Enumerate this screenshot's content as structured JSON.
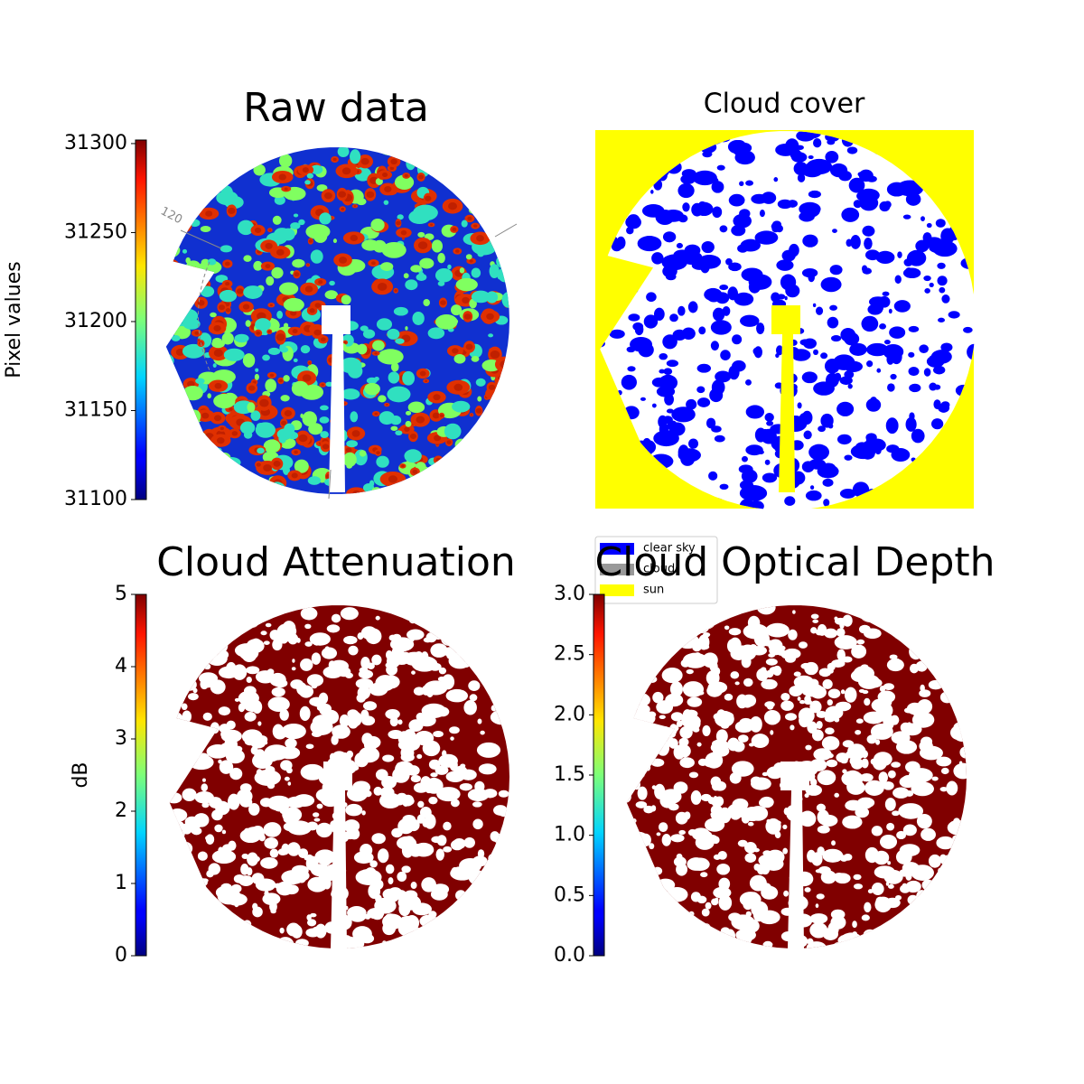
{
  "chart_data": [
    {
      "type": "image",
      "title": "Raw data",
      "colorbar_label": "Pixel values",
      "clim": [
        31100,
        31302
      ],
      "cticks": [
        31100,
        31150,
        31200,
        31250,
        31300
      ],
      "annotations": [
        "120"
      ]
    },
    {
      "type": "image",
      "title": "Cloud cover",
      "legend": [
        {
          "name": "clear sky",
          "color": "#0000ff"
        },
        {
          "name": "cloud",
          "color": "#999999"
        },
        {
          "name": "sun",
          "color": "#ffff00"
        }
      ]
    },
    {
      "type": "image",
      "title": "Cloud Attenuation",
      "colorbar_label": "dB",
      "clim": [
        0,
        5
      ],
      "cticks": [
        0,
        1,
        2,
        3,
        4,
        5
      ]
    },
    {
      "type": "image",
      "title": "Cloud Optical Depth",
      "clim": [
        0,
        3
      ],
      "cticks": [
        {
          "value": 0,
          "label": "0.0"
        },
        0.5,
        {
          "value": 1,
          "label": "1.0"
        },
        1.5,
        {
          "value": 2,
          "label": "2.0"
        },
        2.5,
        {
          "value": 3,
          "label": "3.0"
        }
      ]
    }
  ]
}
